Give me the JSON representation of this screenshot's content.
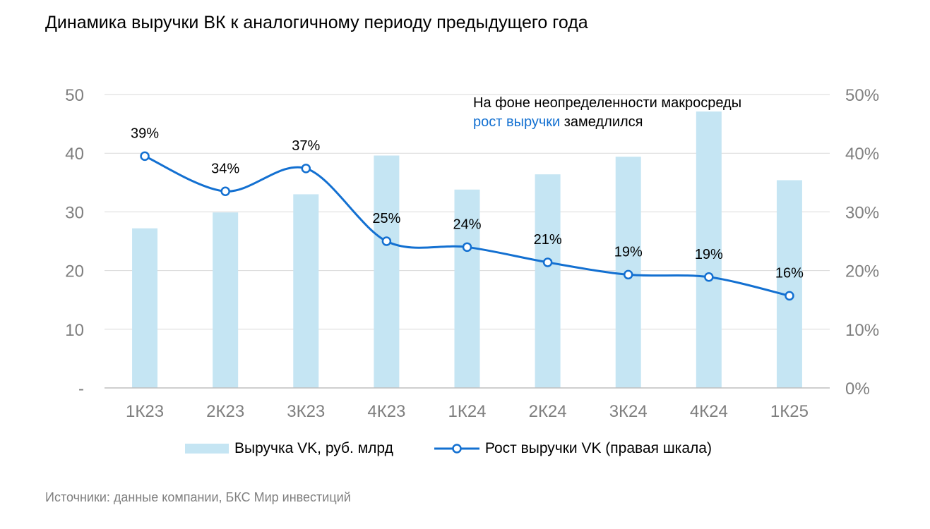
{
  "chart_data": {
    "type": "bar",
    "title": "Динамика выручки ВК к аналогичному периоду предыдущего года",
    "categories": [
      "1К23",
      "2К23",
      "3К23",
      "4К23",
      "1К24",
      "2К24",
      "3К24",
      "4К24",
      "1К25"
    ],
    "series": [
      {
        "name": "Выручка VK, руб. млрд",
        "type": "bar",
        "axis": "left",
        "color": "#c5e5f3",
        "values": [
          27.2,
          29.9,
          33.0,
          39.6,
          33.8,
          36.4,
          39.4,
          47.1,
          35.4
        ]
      },
      {
        "name": "Рост выручки VK (правая шкала)",
        "type": "line",
        "axis": "right",
        "color": "#1370d1",
        "values": [
          39.5,
          33.5,
          37.4,
          25.0,
          24.0,
          21.4,
          19.3,
          18.9,
          15.7
        ],
        "labels": [
          "39%",
          "34%",
          "37%",
          "25%",
          "24%",
          "21%",
          "19%",
          "19%",
          "16%"
        ]
      }
    ],
    "y_left": {
      "ylim": [
        0,
        50
      ],
      "ticks": [
        0,
        10,
        20,
        30,
        40,
        50
      ],
      "tick_labels": [
        "-",
        "10",
        "20",
        "30",
        "40",
        "50"
      ]
    },
    "y_right": {
      "ylim": [
        0,
        50
      ],
      "ticks": [
        0,
        10,
        20,
        30,
        40,
        50
      ],
      "tick_labels": [
        "0%",
        "10%",
        "20%",
        "30%",
        "40%",
        "50%"
      ]
    },
    "grid": "horizontal",
    "legend_position": "bottom",
    "annotation": {
      "line1": "На фоне неопределенности макросреды",
      "line2_highlight": "рост выручки",
      "line2_rest": " замедлился",
      "highlight_color": "#1370d1"
    }
  },
  "source": "Источники: данные компании, БКС Мир инвестиций"
}
